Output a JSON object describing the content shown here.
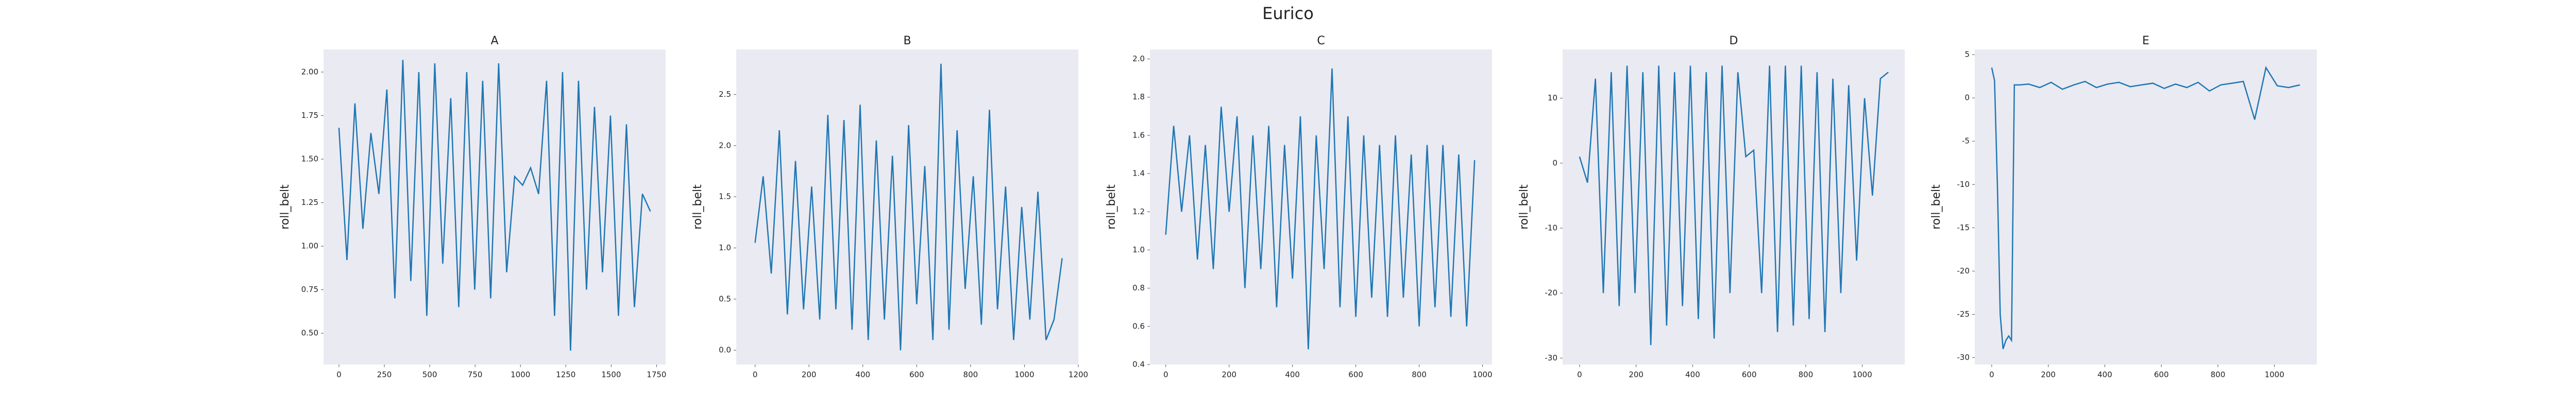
{
  "title": "Eurico",
  "chart_data": [
    {
      "type": "line",
      "title": "A",
      "ylabel": "roll_belt",
      "color": "#1f77b4",
      "x": [
        0,
        44,
        88,
        132,
        176,
        220,
        264,
        308,
        352,
        396,
        440,
        484,
        528,
        572,
        616,
        660,
        704,
        748,
        792,
        836,
        880,
        924,
        968,
        1012,
        1056,
        1100,
        1144,
        1188,
        1232,
        1276,
        1320,
        1364,
        1408,
        1452,
        1496,
        1540,
        1584,
        1628,
        1672,
        1716
      ],
      "values": [
        1.68,
        0.92,
        1.82,
        1.1,
        1.65,
        1.3,
        1.9,
        0.7,
        2.07,
        0.8,
        2.0,
        0.6,
        2.05,
        0.9,
        1.85,
        0.65,
        2.0,
        0.75,
        1.95,
        0.7,
        2.05,
        0.85,
        1.4,
        1.35,
        1.45,
        1.3,
        1.95,
        0.6,
        2.0,
        0.4,
        1.95,
        0.75,
        1.8,
        0.85,
        1.75,
        0.6,
        1.7,
        0.65,
        1.3,
        1.2
      ],
      "xlim": [
        -85,
        1800
      ],
      "xticks": [
        0,
        250,
        500,
        750,
        1000,
        1250,
        1500,
        1750
      ],
      "ylim": [
        0.32,
        2.13
      ],
      "yticks": [
        {
          "value": 0.5,
          "label": "0.50"
        },
        {
          "value": 0.75,
          "label": "0.75"
        },
        {
          "value": 1,
          "label": "1.00"
        },
        {
          "value": 1.25,
          "label": "1.25"
        },
        {
          "value": 1.5,
          "label": "1.50"
        },
        {
          "value": 1.75,
          "label": "1.75"
        },
        {
          "value": 2,
          "label": "2.00"
        }
      ]
    },
    {
      "type": "line",
      "title": "B",
      "ylabel": "roll_belt",
      "color": "#1f77b4",
      "x": [
        0,
        30,
        60,
        90,
        120,
        150,
        180,
        210,
        240,
        270,
        300,
        330,
        360,
        390,
        420,
        450,
        480,
        510,
        540,
        570,
        600,
        630,
        660,
        690,
        720,
        750,
        780,
        810,
        840,
        870,
        900,
        930,
        960,
        990,
        1020,
        1050,
        1080,
        1110,
        1140
      ],
      "values": [
        1.05,
        1.7,
        0.75,
        2.15,
        0.35,
        1.85,
        0.4,
        1.6,
        0.3,
        2.3,
        0.4,
        2.25,
        0.2,
        2.4,
        0.1,
        2.05,
        0.3,
        1.9,
        0.0,
        2.2,
        0.45,
        1.8,
        0.1,
        2.8,
        0.2,
        2.15,
        0.6,
        1.7,
        0.25,
        2.35,
        0.4,
        1.6,
        0.1,
        1.4,
        0.3,
        1.55,
        0.1,
        0.3,
        0.9
      ],
      "xlim": [
        -70,
        1200
      ],
      "xticks": [
        0,
        200,
        400,
        600,
        800,
        1000,
        1200
      ],
      "ylim": [
        -0.14,
        2.94
      ],
      "yticks": [
        {
          "value": 0,
          "label": "0.0"
        },
        0.5,
        {
          "value": 1,
          "label": "1.0"
        },
        1.5,
        {
          "value": 2,
          "label": "2.0"
        },
        2.5
      ]
    },
    {
      "type": "line",
      "title": "C",
      "ylabel": "roll_belt",
      "color": "#1f77b4",
      "x": [
        0,
        25,
        50,
        75,
        100,
        125,
        150,
        175,
        200,
        225,
        250,
        275,
        300,
        325,
        350,
        375,
        400,
        425,
        450,
        475,
        500,
        525,
        550,
        575,
        600,
        625,
        650,
        675,
        700,
        725,
        750,
        775,
        800,
        825,
        850,
        875,
        900,
        925,
        950,
        975
      ],
      "values": [
        1.08,
        1.65,
        1.2,
        1.6,
        0.95,
        1.55,
        0.9,
        1.75,
        1.2,
        1.7,
        0.8,
        1.6,
        0.9,
        1.65,
        0.7,
        1.55,
        0.85,
        1.7,
        0.48,
        1.6,
        0.9,
        1.95,
        0.7,
        1.7,
        0.65,
        1.6,
        0.75,
        1.55,
        0.65,
        1.6,
        0.75,
        1.5,
        0.6,
        1.55,
        0.7,
        1.55,
        0.65,
        1.5,
        0.6,
        1.47
      ],
      "xlim": [
        -50,
        1030
      ],
      "xticks": [
        0,
        200,
        400,
        600,
        800,
        1000
      ],
      "ylim": [
        0.4,
        2.05
      ],
      "yticks": [
        0.4,
        0.6,
        0.8,
        {
          "value": 1,
          "label": "1.0"
        },
        1.2,
        1.4,
        1.6,
        1.8,
        {
          "value": 2,
          "label": "2.0"
        }
      ]
    },
    {
      "type": "line",
      "title": "D",
      "ylabel": "roll_belt",
      "color": "#1f77b4",
      "x": [
        0,
        28,
        56,
        84,
        112,
        140,
        168,
        196,
        224,
        252,
        280,
        308,
        336,
        364,
        392,
        420,
        448,
        476,
        504,
        532,
        560,
        588,
        616,
        644,
        672,
        700,
        728,
        756,
        784,
        812,
        840,
        868,
        896,
        924,
        952,
        980,
        1008,
        1036,
        1064,
        1092
      ],
      "values": [
        1,
        -3,
        13,
        -20,
        14,
        -22,
        15,
        -20,
        14,
        -28,
        15,
        -25,
        14,
        -22,
        15,
        -24,
        14,
        -27,
        15,
        -20,
        14,
        1,
        2,
        -20,
        15,
        -26,
        15,
        -25,
        15,
        -24,
        14,
        -26,
        13,
        -20,
        12,
        -15,
        10,
        -5,
        13,
        14
      ],
      "xlim": [
        -60,
        1150
      ],
      "xticks": [
        0,
        200,
        400,
        600,
        800,
        1000
      ],
      "ylim": [
        -31,
        17.5
      ],
      "yticks": [
        -30,
        -20,
        -10,
        0,
        10
      ]
    },
    {
      "type": "line",
      "title": "E",
      "ylabel": "roll_belt",
      "color": "#1f77b4",
      "x": [
        0,
        10,
        20,
        30,
        40,
        50,
        60,
        70,
        80,
        90,
        100,
        130,
        170,
        210,
        250,
        290,
        330,
        370,
        410,
        450,
        490,
        530,
        570,
        610,
        650,
        690,
        730,
        770,
        810,
        850,
        890,
        930,
        970,
        1010,
        1050,
        1090
      ],
      "values": [
        3.5,
        2,
        -10,
        -25,
        -29,
        -28,
        -27.5,
        -28,
        1.5,
        1.5,
        1.5,
        1.6,
        1.2,
        1.8,
        1.0,
        1.5,
        1.9,
        1.2,
        1.6,
        1.8,
        1.3,
        1.5,
        1.7,
        1.1,
        1.6,
        1.2,
        1.8,
        0.8,
        1.5,
        1.7,
        1.9,
        -2.5,
        3.5,
        1.4,
        1.2,
        1.5
      ],
      "xlim": [
        -60,
        1150
      ],
      "xticks": [
        0,
        200,
        400,
        600,
        800,
        1000
      ],
      "ylim": [
        -30.8,
        5.6
      ],
      "yticks": [
        -30,
        -25,
        -20,
        -15,
        -10,
        -5,
        0,
        5
      ]
    }
  ]
}
